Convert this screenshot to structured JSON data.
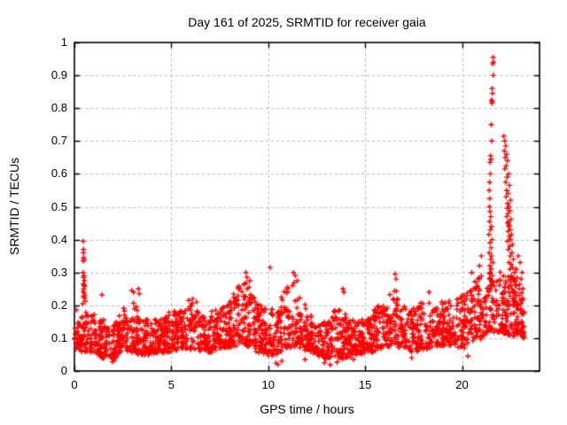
{
  "chart_data": {
    "type": "scatter",
    "title": "Day 161 of 2025, SRMTID for receiver gaia",
    "xlabel": "GPS time / hours",
    "ylabel": "SRMTID / TECUs",
    "xlim": [
      0,
      24
    ],
    "ylim": [
      0,
      1
    ],
    "xticks": {
      "values": [
        0,
        5,
        10,
        15,
        20
      ],
      "labels": [
        "0",
        "5",
        "10",
        "15",
        "20"
      ]
    },
    "yticks": {
      "values": [
        0,
        0.1,
        0.2,
        0.3,
        0.4,
        0.5,
        0.6,
        0.7,
        0.8,
        0.9,
        1
      ],
      "labels": [
        "0",
        "0.1",
        "0.2",
        "0.3",
        "0.4",
        "0.5",
        "0.6",
        "0.7",
        "0.8",
        "0.9",
        "1"
      ]
    },
    "grid": {
      "show": true,
      "color": "#b8b8b8",
      "style": "dashed"
    },
    "border_color": "#000000",
    "background": "#ffffff",
    "marker": {
      "shape": "plus",
      "color": "#ff0000",
      "size": 7
    },
    "series_name": "SRMTID",
    "data_hour_range": [
      0,
      23.2
    ],
    "band_profile": [
      [
        0.0,
        0.07,
        0.19
      ],
      [
        0.5,
        0.06,
        0.18
      ],
      [
        1.0,
        0.05,
        0.17
      ],
      [
        1.5,
        0.04,
        0.16
      ],
      [
        2.0,
        0.04,
        0.15
      ],
      [
        2.5,
        0.06,
        0.19
      ],
      [
        3.0,
        0.06,
        0.22
      ],
      [
        3.5,
        0.05,
        0.17
      ],
      [
        4.0,
        0.05,
        0.15
      ],
      [
        4.5,
        0.06,
        0.16
      ],
      [
        5.0,
        0.06,
        0.18
      ],
      [
        5.5,
        0.07,
        0.2
      ],
      [
        6.0,
        0.07,
        0.21
      ],
      [
        6.5,
        0.06,
        0.17
      ],
      [
        7.0,
        0.06,
        0.18
      ],
      [
        7.5,
        0.07,
        0.19
      ],
      [
        8.0,
        0.07,
        0.21
      ],
      [
        8.5,
        0.08,
        0.26
      ],
      [
        9.0,
        0.08,
        0.27
      ],
      [
        9.5,
        0.06,
        0.2
      ],
      [
        10.0,
        0.05,
        0.21
      ],
      [
        10.5,
        0.05,
        0.2
      ],
      [
        11.0,
        0.07,
        0.26
      ],
      [
        11.5,
        0.08,
        0.27
      ],
      [
        12.0,
        0.06,
        0.19
      ],
      [
        12.5,
        0.05,
        0.16
      ],
      [
        13.0,
        0.04,
        0.15
      ],
      [
        13.5,
        0.04,
        0.2
      ],
      [
        14.0,
        0.04,
        0.17
      ],
      [
        14.5,
        0.05,
        0.15
      ],
      [
        15.0,
        0.06,
        0.17
      ],
      [
        15.5,
        0.06,
        0.19
      ],
      [
        16.0,
        0.07,
        0.21
      ],
      [
        16.5,
        0.08,
        0.25
      ],
      [
        17.0,
        0.07,
        0.2
      ],
      [
        17.5,
        0.06,
        0.19
      ],
      [
        18.0,
        0.07,
        0.21
      ],
      [
        18.5,
        0.07,
        0.2
      ],
      [
        19.0,
        0.08,
        0.22
      ],
      [
        19.5,
        0.08,
        0.21
      ],
      [
        20.0,
        0.07,
        0.23
      ],
      [
        20.5,
        0.09,
        0.26
      ],
      [
        21.0,
        0.1,
        0.3
      ],
      [
        21.5,
        0.12,
        0.3
      ],
      [
        22.0,
        0.12,
        0.3
      ],
      [
        22.5,
        0.11,
        0.3
      ],
      [
        23.0,
        0.11,
        0.27
      ],
      [
        23.2,
        0.1,
        0.24
      ]
    ],
    "n_band_points": 2300,
    "seed": 20250161,
    "explicit_points": [
      [
        0.45,
        0.395
      ],
      [
        0.47,
        0.37
      ],
      [
        0.46,
        0.36
      ],
      [
        0.48,
        0.345
      ],
      [
        0.49,
        0.34
      ],
      [
        0.46,
        0.335
      ],
      [
        0.45,
        0.3
      ],
      [
        0.49,
        0.29
      ],
      [
        0.47,
        0.285
      ],
      [
        0.52,
        0.275
      ],
      [
        0.46,
        0.265
      ],
      [
        0.5,
        0.26
      ],
      [
        0.52,
        0.258
      ],
      [
        0.48,
        0.25
      ],
      [
        0.44,
        0.243
      ],
      [
        0.5,
        0.237
      ],
      [
        0.53,
        0.23
      ],
      [
        0.47,
        0.227
      ],
      [
        0.51,
        0.222
      ],
      [
        0.55,
        0.213
      ],
      [
        0.43,
        0.205
      ],
      [
        1.42,
        0.232
      ],
      [
        2.95,
        0.245
      ],
      [
        3.05,
        0.24
      ],
      [
        3.3,
        0.25
      ],
      [
        3.35,
        0.235
      ],
      [
        5.9,
        0.215
      ],
      [
        6.1,
        0.22
      ],
      [
        6.3,
        0.21
      ],
      [
        8.85,
        0.3
      ],
      [
        8.9,
        0.285
      ],
      [
        9.05,
        0.275
      ],
      [
        10.1,
        0.315
      ],
      [
        11.3,
        0.3
      ],
      [
        11.4,
        0.29
      ],
      [
        11.5,
        0.275
      ],
      [
        13.85,
        0.25
      ],
      [
        13.9,
        0.24
      ],
      [
        16.55,
        0.295
      ],
      [
        16.6,
        0.28
      ],
      [
        18.3,
        0.24
      ],
      [
        20.5,
        0.3
      ],
      [
        20.9,
        0.32
      ],
      [
        21.0,
        0.35
      ],
      [
        1.95,
        0.028
      ],
      [
        2.05,
        0.032
      ],
      [
        10.4,
        0.024
      ],
      [
        10.5,
        0.02
      ],
      [
        12.9,
        0.025
      ],
      [
        13.2,
        0.019
      ],
      [
        13.55,
        0.027
      ],
      [
        14.4,
        0.035
      ],
      [
        17.4,
        0.04
      ],
      [
        20.3,
        0.045
      ],
      [
        10.7,
        0.03
      ],
      [
        11.9,
        0.035
      ],
      [
        21.6,
        0.955
      ],
      [
        21.62,
        0.94
      ],
      [
        21.58,
        0.935
      ],
      [
        21.61,
        0.9
      ],
      [
        21.55,
        0.86
      ],
      [
        21.57,
        0.845
      ],
      [
        21.52,
        0.825
      ],
      [
        21.56,
        0.82
      ],
      [
        21.54,
        0.815
      ],
      [
        21.5,
        0.75
      ],
      [
        21.53,
        0.7
      ],
      [
        21.47,
        0.655
      ],
      [
        21.49,
        0.645
      ],
      [
        21.44,
        0.635
      ],
      [
        21.46,
        0.6
      ],
      [
        21.42,
        0.575
      ],
      [
        21.4,
        0.55
      ],
      [
        21.43,
        0.525
      ],
      [
        21.41,
        0.5
      ],
      [
        21.45,
        0.485
      ],
      [
        21.48,
        0.47
      ],
      [
        21.42,
        0.455
      ],
      [
        21.51,
        0.44
      ],
      [
        21.46,
        0.43
      ],
      [
        21.39,
        0.415
      ],
      [
        21.55,
        0.4
      ],
      [
        21.44,
        0.39
      ],
      [
        21.49,
        0.375
      ],
      [
        21.4,
        0.36
      ],
      [
        21.52,
        0.35
      ],
      [
        21.47,
        0.34
      ],
      [
        21.58,
        0.33
      ],
      [
        21.43,
        0.32
      ],
      [
        21.5,
        0.31
      ],
      [
        21.45,
        0.3
      ],
      [
        21.56,
        0.29
      ],
      [
        21.41,
        0.28
      ],
      [
        21.53,
        0.27
      ],
      [
        21.48,
        0.26
      ],
      [
        21.44,
        0.25
      ],
      [
        22.15,
        0.715
      ],
      [
        22.2,
        0.7
      ],
      [
        22.25,
        0.685
      ],
      [
        22.18,
        0.67
      ],
      [
        22.3,
        0.66
      ],
      [
        22.22,
        0.65
      ],
      [
        22.35,
        0.64
      ],
      [
        22.28,
        0.625
      ],
      [
        22.2,
        0.615
      ],
      [
        22.4,
        0.6
      ],
      [
        22.32,
        0.59
      ],
      [
        22.25,
        0.575
      ],
      [
        22.45,
        0.565
      ],
      [
        22.3,
        0.55
      ],
      [
        22.38,
        0.54
      ],
      [
        22.27,
        0.53
      ],
      [
        22.5,
        0.52
      ],
      [
        22.35,
        0.51
      ],
      [
        22.42,
        0.5
      ],
      [
        22.33,
        0.495
      ],
      [
        22.47,
        0.487
      ],
      [
        22.38,
        0.48
      ],
      [
        22.3,
        0.47
      ],
      [
        22.52,
        0.462
      ],
      [
        22.4,
        0.455
      ],
      [
        22.36,
        0.45
      ],
      [
        22.44,
        0.445
      ],
      [
        22.41,
        0.44
      ],
      [
        22.48,
        0.43
      ],
      [
        22.37,
        0.425
      ],
      [
        22.55,
        0.415
      ],
      [
        22.43,
        0.41
      ],
      [
        22.5,
        0.4
      ],
      [
        22.34,
        0.395
      ],
      [
        22.6,
        0.385
      ],
      [
        22.46,
        0.38
      ],
      [
        22.39,
        0.37
      ],
      [
        22.57,
        0.36
      ],
      [
        22.48,
        0.35
      ],
      [
        22.65,
        0.34
      ],
      [
        22.42,
        0.33
      ],
      [
        22.53,
        0.325
      ],
      [
        22.6,
        0.315
      ],
      [
        22.47,
        0.31
      ],
      [
        22.7,
        0.3
      ],
      [
        22.55,
        0.29
      ],
      [
        22.63,
        0.28
      ],
      [
        22.5,
        0.27
      ],
      [
        22.75,
        0.26
      ],
      [
        22.58,
        0.25
      ],
      [
        22.68,
        0.24
      ],
      [
        22.8,
        0.23
      ],
      [
        22.62,
        0.22
      ],
      [
        22.73,
        0.21
      ],
      [
        22.85,
        0.2
      ],
      [
        22.9,
        0.35
      ],
      [
        23.0,
        0.33
      ],
      [
        22.8,
        0.31
      ],
      [
        23.1,
        0.3
      ],
      [
        23.05,
        0.28
      ],
      [
        22.95,
        0.25
      ],
      [
        23.15,
        0.22
      ],
      [
        23.2,
        0.18
      ]
    ]
  }
}
